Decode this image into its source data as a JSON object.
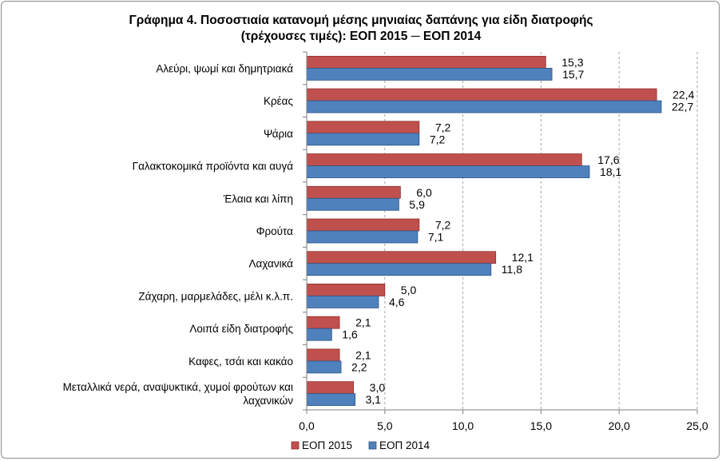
{
  "chart_data": {
    "type": "bar",
    "orientation": "horizontal",
    "title_line1": "Γράφημα 4.  Ποσοστιαία κατανομή μέσης μηνιαίας δαπάνης για είδη διατροφής",
    "title_line2": "(τρέχουσες τιμές): ΕΟΠ 2015 ─ ΕΟΠ 2014",
    "categories": [
      [
        "Αλεύρι, ψωμί και δημητριακά"
      ],
      [
        "Κρέας"
      ],
      [
        "Ψάρια"
      ],
      [
        "Γαλακτοκομικά προϊόντα και αυγά"
      ],
      [
        "Έλαια και λίπη"
      ],
      [
        "Φρούτα"
      ],
      [
        "Λαχανικά"
      ],
      [
        "Ζάχαρη, μαρμελάδες, μέλι κ.λ.π."
      ],
      [
        "Λοιπά είδη διατροφής"
      ],
      [
        "Καφες, τσάι και κακάο"
      ],
      [
        "Μεταλλικά νερά, αναψυκτικά, χυμοί φρούτων και",
        "λαχανικών"
      ]
    ],
    "series": [
      {
        "name": "ΕΟΠ 2015",
        "color": "#c0504d",
        "edge": "#8e2f2c",
        "values": [
          15.3,
          22.4,
          7.2,
          17.6,
          6.0,
          7.2,
          12.1,
          5.0,
          2.1,
          2.1,
          3.0
        ],
        "labels": [
          "15,3",
          "22,4",
          "7,2",
          "17,6",
          "6,0",
          "7,2",
          "12,1",
          "5,0",
          "2,1",
          "2,1",
          "3,0"
        ]
      },
      {
        "name": "ΕΟΠ 2014",
        "color": "#4f81bd",
        "edge": "#2c5587",
        "values": [
          15.7,
          22.7,
          7.2,
          18.1,
          5.9,
          7.1,
          11.8,
          4.6,
          1.6,
          2.2,
          3.1
        ],
        "labels": [
          "15,7",
          "22,7",
          "7,2",
          "18,1",
          "5,9",
          "7,1",
          "11,8",
          "4,6",
          "1,6",
          "2,2",
          "3,1"
        ]
      }
    ],
    "xlim": [
      0,
      25
    ],
    "xticks": [
      0,
      5,
      10,
      15,
      20,
      25
    ],
    "xtick_labels": [
      "0,0",
      "5,0",
      "10,0",
      "15,0",
      "20,0",
      "25,0"
    ],
    "grid": "vertical dashed",
    "legend_position": "bottom",
    "gridline_color": "#a6a6a6",
    "axis_color": "#7f7f7f"
  }
}
